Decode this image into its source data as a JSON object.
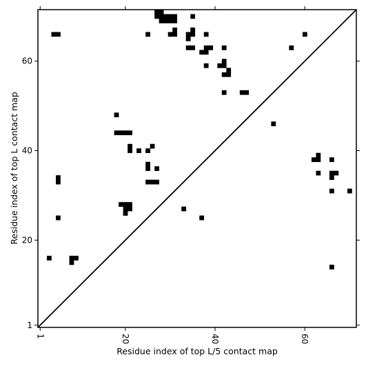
{
  "chart_data": {
    "type": "heatmap",
    "title": "",
    "xlabel": "Residue index of top L/5 contact map",
    "ylabel": "Residue index of top L contact map",
    "xlim": [
      0.5,
      71.5
    ],
    "ylim": [
      0.5,
      71.5
    ],
    "x_ticks": [
      {
        "value": 1,
        "label": "1"
      },
      {
        "value": 20,
        "label": "20"
      },
      {
        "value": 40,
        "label": "40"
      },
      {
        "value": 60,
        "label": "60"
      }
    ],
    "y_ticks": [
      {
        "value": 1,
        "label": "1"
      },
      {
        "value": 20,
        "label": "20"
      },
      {
        "value": 40,
        "label": "40"
      },
      {
        "value": 60,
        "label": "60"
      }
    ],
    "x_tick_rotation_deg": 90,
    "diagonal_line": true,
    "cell_color": "#000000",
    "background_color": "#ffffff",
    "cells": [
      [
        4,
        66
      ],
      [
        5,
        66
      ],
      [
        25,
        66
      ],
      [
        27,
        70
      ],
      [
        27,
        71
      ],
      [
        28,
        70
      ],
      [
        28,
        71
      ],
      [
        28,
        69
      ],
      [
        29,
        69
      ],
      [
        29,
        70
      ],
      [
        30,
        69
      ],
      [
        30,
        70
      ],
      [
        31,
        69
      ],
      [
        31,
        70
      ],
      [
        30,
        66
      ],
      [
        31,
        66
      ],
      [
        31,
        67
      ],
      [
        35,
        70
      ],
      [
        34,
        66
      ],
      [
        35,
        66
      ],
      [
        35,
        67
      ],
      [
        34,
        65
      ],
      [
        34,
        63
      ],
      [
        35,
        63
      ],
      [
        38,
        66
      ],
      [
        37,
        62
      ],
      [
        38,
        62
      ],
      [
        38,
        63
      ],
      [
        39,
        63
      ],
      [
        38,
        59
      ],
      [
        41,
        59
      ],
      [
        42,
        59
      ],
      [
        42,
        60
      ],
      [
        42,
        63
      ],
      [
        42,
        57
      ],
      [
        43,
        57
      ],
      [
        43,
        58
      ],
      [
        42,
        53
      ],
      [
        46,
        53
      ],
      [
        47,
        53
      ],
      [
        57,
        63
      ],
      [
        60,
        66
      ],
      [
        18,
        48
      ],
      [
        18,
        44
      ],
      [
        19,
        44
      ],
      [
        20,
        44
      ],
      [
        21,
        44
      ],
      [
        21,
        41
      ],
      [
        21,
        40
      ],
      [
        23,
        40
      ],
      [
        25,
        40
      ],
      [
        26,
        41
      ],
      [
        25,
        37
      ],
      [
        25,
        36
      ],
      [
        27,
        36
      ],
      [
        25,
        33
      ],
      [
        26,
        33
      ],
      [
        27,
        33
      ],
      [
        5,
        34
      ],
      [
        5,
        33
      ],
      [
        5,
        25
      ],
      [
        3,
        16
      ],
      [
        8,
        16
      ],
      [
        9,
        16
      ],
      [
        8,
        15
      ],
      [
        19,
        28
      ],
      [
        20,
        28
      ],
      [
        21,
        28
      ],
      [
        20,
        27
      ],
      [
        21,
        27
      ],
      [
        20,
        26
      ],
      [
        33,
        27
      ],
      [
        37,
        25
      ],
      [
        53,
        46
      ],
      [
        62,
        38
      ],
      [
        63,
        38
      ],
      [
        63,
        39
      ],
      [
        63,
        35
      ],
      [
        66,
        38
      ],
      [
        66,
        35
      ],
      [
        67,
        35
      ],
      [
        66,
        34
      ],
      [
        66,
        31
      ],
      [
        70,
        31
      ],
      [
        66,
        14
      ]
    ]
  }
}
